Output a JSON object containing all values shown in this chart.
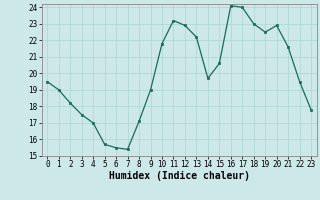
{
  "x": [
    0,
    1,
    2,
    3,
    4,
    5,
    6,
    7,
    8,
    9,
    10,
    11,
    12,
    13,
    14,
    15,
    16,
    17,
    18,
    19,
    20,
    21,
    22,
    23
  ],
  "y": [
    19.5,
    19.0,
    18.2,
    17.5,
    17.0,
    15.7,
    15.5,
    15.4,
    17.1,
    19.0,
    21.8,
    23.2,
    22.9,
    22.2,
    19.7,
    20.6,
    24.1,
    24.0,
    23.0,
    22.5,
    22.9,
    21.6,
    19.5,
    17.8
  ],
  "xlabel": "Humidex (Indice chaleur)",
  "ylim": [
    15,
    24
  ],
  "xlim": [
    -0.5,
    23.5
  ],
  "yticks": [
    15,
    16,
    17,
    18,
    19,
    20,
    21,
    22,
    23,
    24
  ],
  "xticks": [
    0,
    1,
    2,
    3,
    4,
    5,
    6,
    7,
    8,
    9,
    10,
    11,
    12,
    13,
    14,
    15,
    16,
    17,
    18,
    19,
    20,
    21,
    22,
    23
  ],
  "line_color": "#1a6b5a",
  "marker_color": "#1a6b5a",
  "bg_color": "#cce8e8",
  "grid_color": "#aad4d4",
  "tick_fontsize": 5.5,
  "label_fontsize": 7
}
